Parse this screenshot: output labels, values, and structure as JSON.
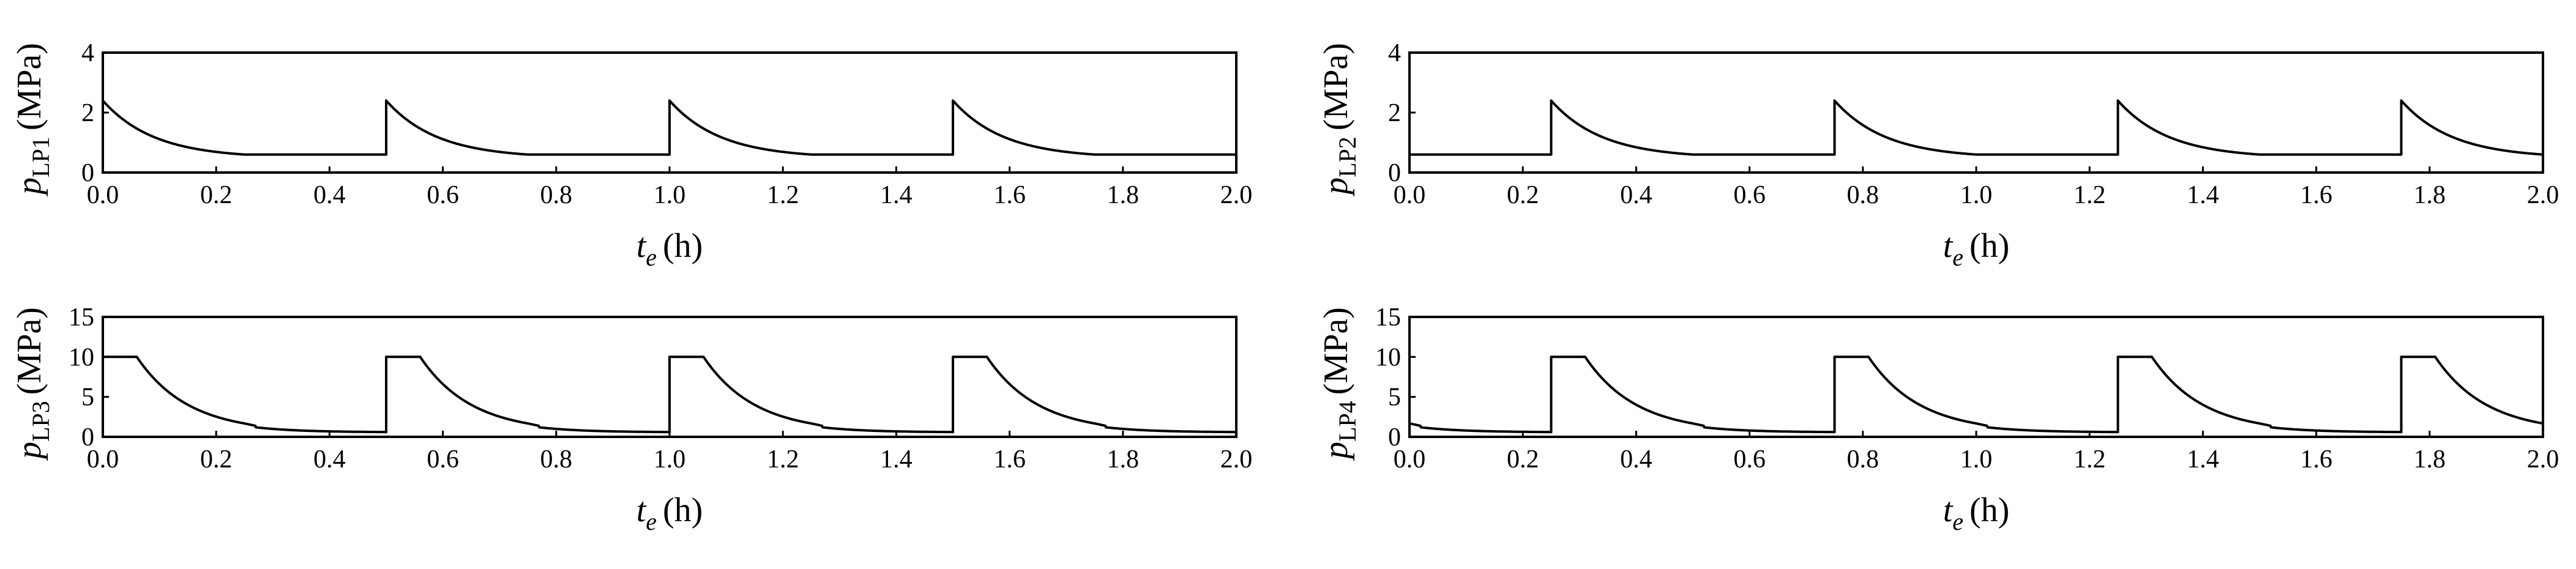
{
  "chart_data": [
    {
      "type": "line",
      "panel": "top-left",
      "ylabel": {
        "main": "p",
        "sub": "LP1",
        "unit": "(MPa)"
      },
      "xlabel": {
        "main": "t",
        "sub": "e",
        "unit": "(h)"
      },
      "xlim": [
        0,
        2
      ],
      "ylim": [
        0,
        4
      ],
      "xticks": [
        "0.0",
        "0.2",
        "0.4",
        "0.6",
        "0.8",
        "1.0",
        "1.2",
        "1.4",
        "1.6",
        "1.8",
        "2.0"
      ],
      "yticks": [
        "0",
        "2",
        "4"
      ],
      "pattern": {
        "period": 0.5,
        "start": 0.0,
        "peak": 2.4,
        "floor": 0.6,
        "plateau": 0,
        "decay_end": 0.25,
        "tau": 0.09,
        "knee": null
      },
      "grid": false
    },
    {
      "type": "line",
      "panel": "top-right",
      "ylabel": {
        "main": "p",
        "sub": "LP2",
        "unit": "(MPa)"
      },
      "xlabel": {
        "main": "t",
        "sub": "e",
        "unit": "(h)"
      },
      "xlim": [
        0,
        2
      ],
      "ylim": [
        0,
        4
      ],
      "xticks": [
        "0.0",
        "0.2",
        "0.4",
        "0.6",
        "0.8",
        "1.0",
        "1.2",
        "1.4",
        "1.6",
        "1.8",
        "2.0"
      ],
      "yticks": [
        "0",
        "2",
        "4"
      ],
      "pattern": {
        "period": 0.5,
        "start": 0.25,
        "peak": 2.4,
        "floor": 0.6,
        "plateau": 0,
        "decay_end": 0.25,
        "tau": 0.09,
        "knee": null
      },
      "grid": false
    },
    {
      "type": "line",
      "panel": "bottom-left",
      "ylabel": {
        "main": "p",
        "sub": "LP3",
        "unit": "(MPa)"
      },
      "xlabel": {
        "main": "t",
        "sub": "e",
        "unit": "(h)"
      },
      "xlim": [
        0,
        2
      ],
      "ylim": [
        0,
        15
      ],
      "xticks": [
        "0.0",
        "0.2",
        "0.4",
        "0.6",
        "0.8",
        "1.0",
        "1.2",
        "1.4",
        "1.6",
        "1.8",
        "2.0"
      ],
      "yticks": [
        "0",
        "5",
        "10",
        "15"
      ],
      "pattern": {
        "period": 0.5,
        "start": 0.0,
        "peak": 10,
        "floor": 0.6,
        "plateau": 0.06,
        "decay_end": 0.5,
        "tau": 0.09,
        "knee": 0.25
      },
      "grid": false
    },
    {
      "type": "line",
      "panel": "bottom-right",
      "ylabel": {
        "main": "p",
        "sub": "LP4",
        "unit": "(MPa)"
      },
      "xlabel": {
        "main": "t",
        "sub": "e",
        "unit": "(h)"
      },
      "xlim": [
        0,
        2
      ],
      "ylim": [
        0,
        15
      ],
      "xticks": [
        "0.0",
        "0.2",
        "0.4",
        "0.6",
        "0.8",
        "1.0",
        "1.2",
        "1.4",
        "1.6",
        "1.8",
        "2.0"
      ],
      "yticks": [
        "0",
        "5",
        "10",
        "15"
      ],
      "pattern": {
        "period": 0.5,
        "start": 0.25,
        "peak": 10,
        "floor": 0.6,
        "plateau": 0.06,
        "decay_end": 0.5,
        "tau": 0.09,
        "knee": 0.25
      },
      "grid": false
    }
  ]
}
